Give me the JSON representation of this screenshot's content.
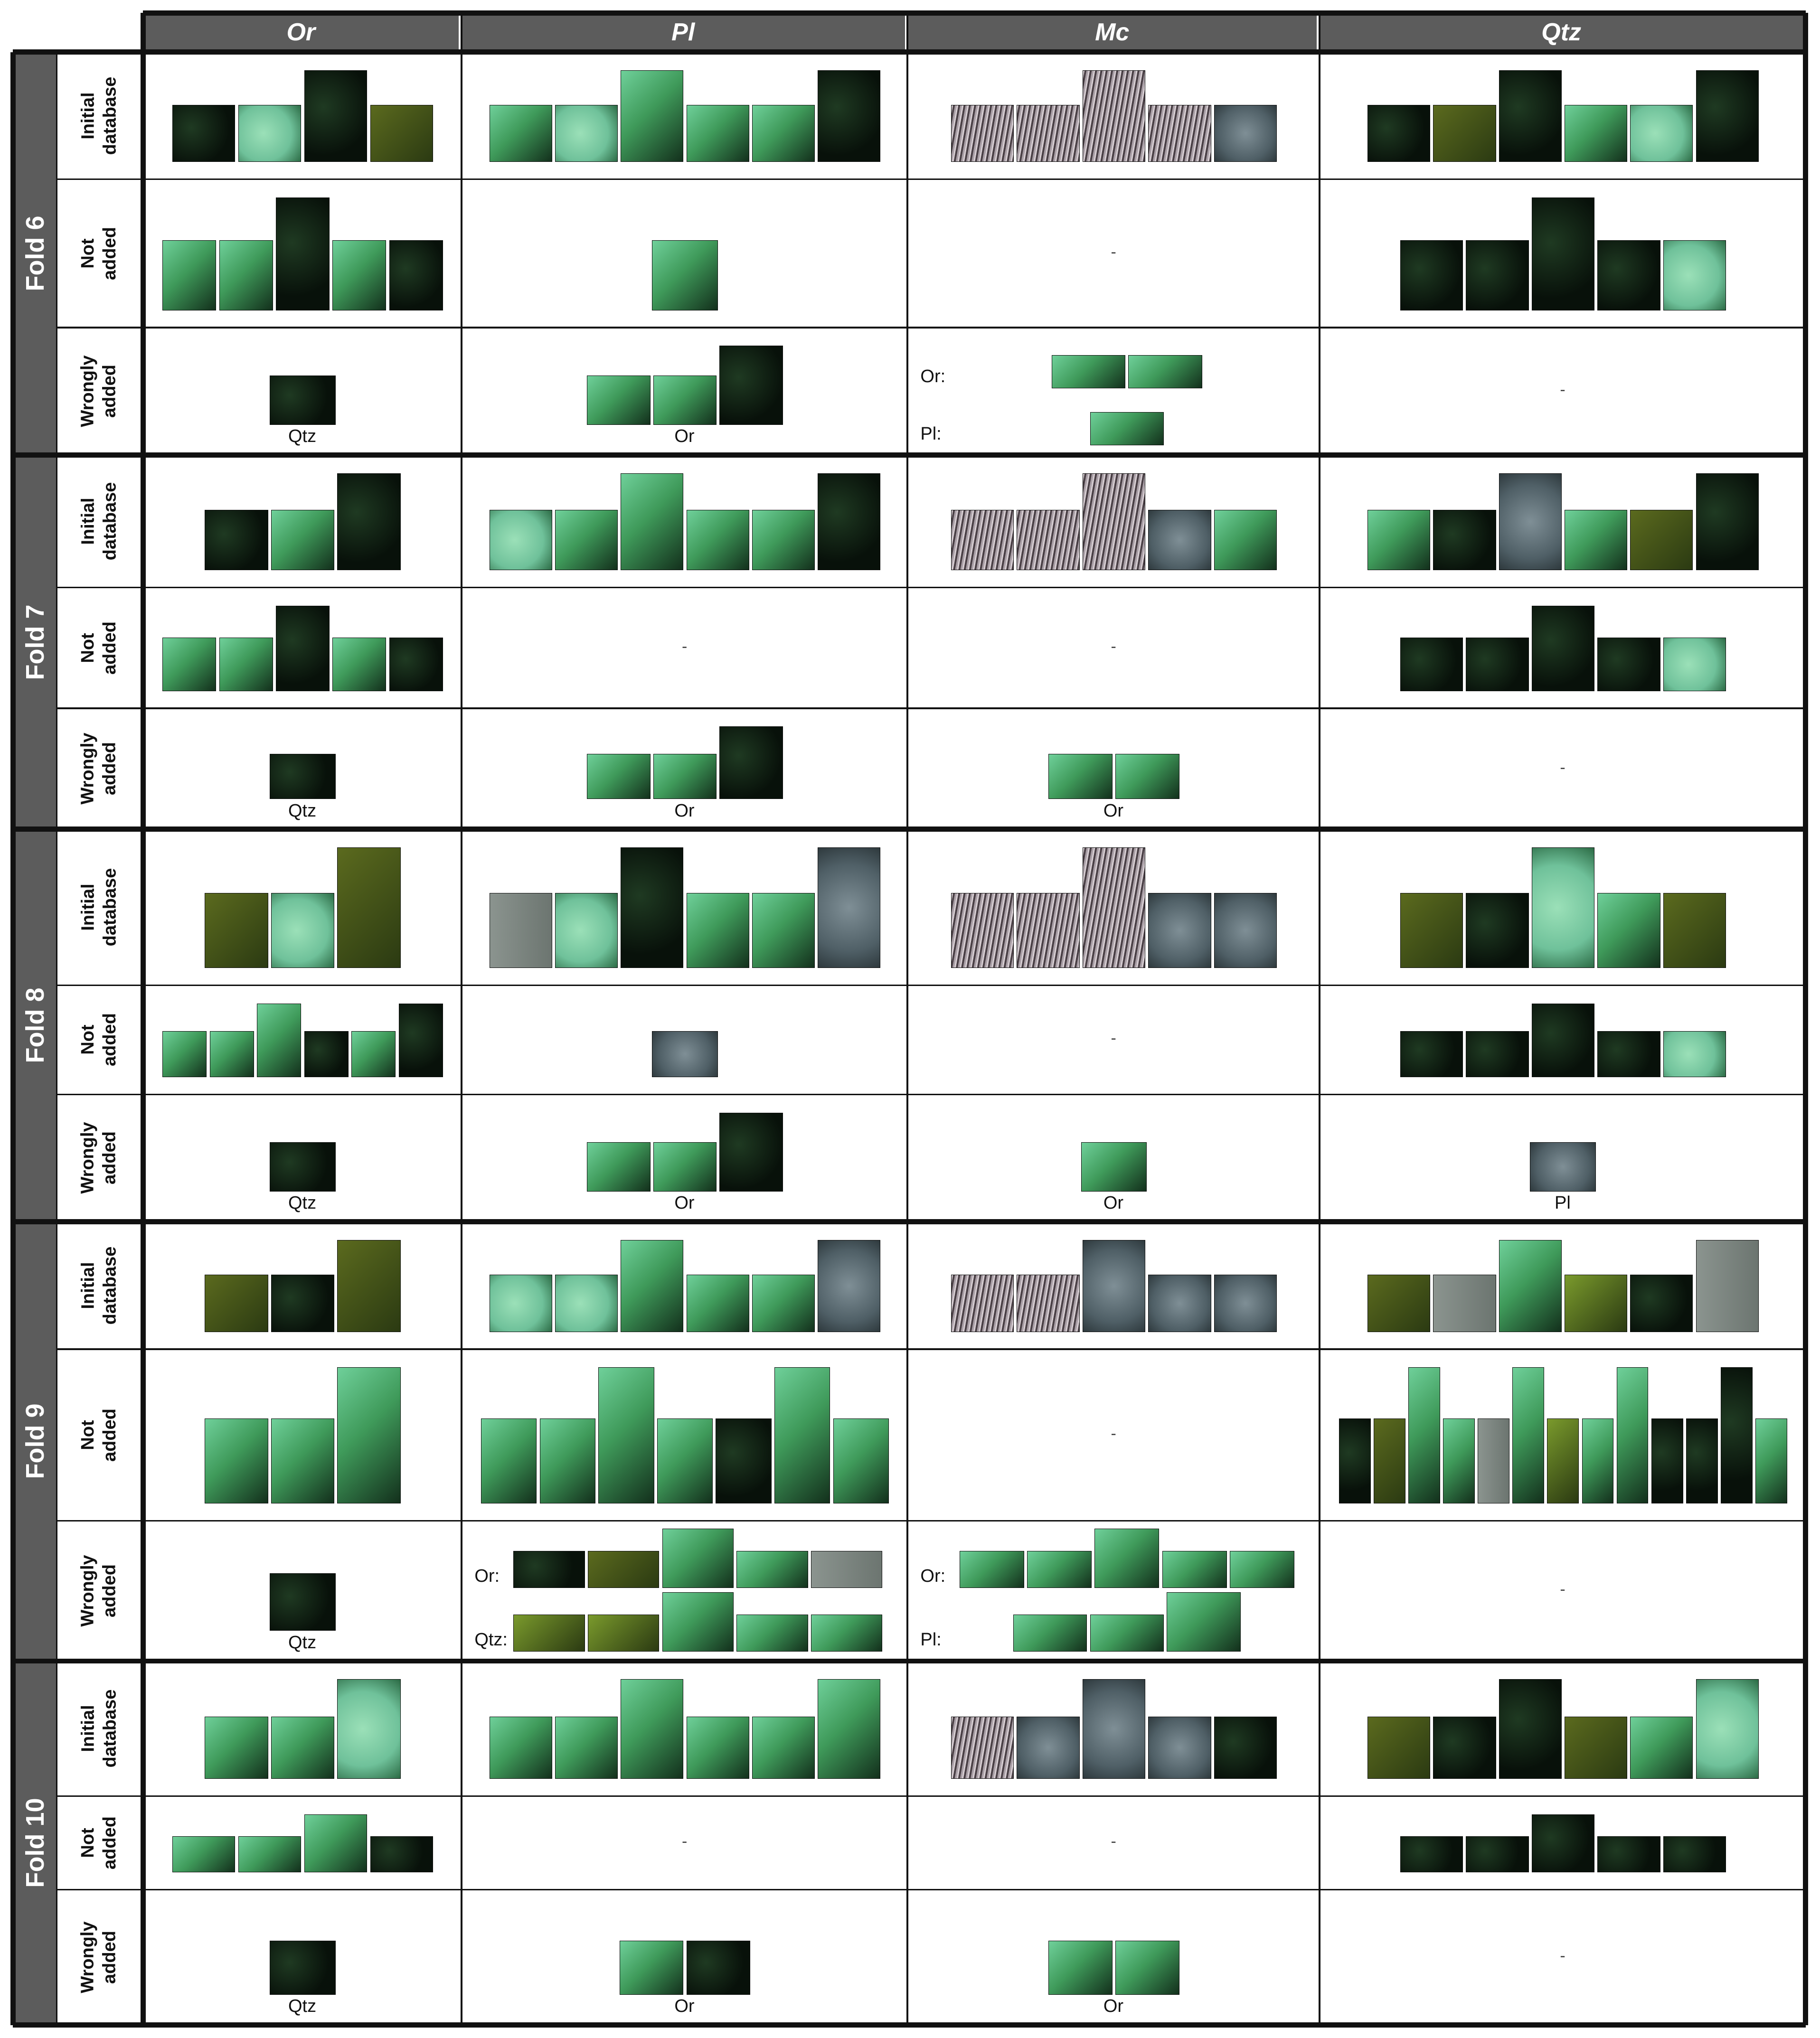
{
  "columns": [
    {
      "key": "or",
      "label": "Or"
    },
    {
      "key": "pl",
      "label": "Pl"
    },
    {
      "key": "mc",
      "label": "Mc"
    },
    {
      "key": "qtz",
      "label": "Qtz"
    }
  ],
  "row_types": [
    {
      "key": "initial",
      "label": "Initial\ndatabase"
    },
    {
      "key": "not_added",
      "label": "Not\nadded"
    },
    {
      "key": "wrongly",
      "label": "Wrongly\nadded"
    }
  ],
  "empty_marker": "-",
  "palette": {
    "green": "#3f9a5a",
    "dark": "#0f1a10",
    "pale": "#6fc19a",
    "olive": "#5b6a1e",
    "stripe": "#9a8f95",
    "blue": "#4f5f66",
    "lime": "#7a9a2c",
    "grey": "#6c7570"
  },
  "folds": [
    {
      "label": "Fold 6",
      "cells": {
        "or": {
          "initial": {
            "thumbs": [
              "dark",
              "pale",
              "dark",
              "olive"
            ]
          },
          "not_added": {
            "thumbs": [
              "green",
              "green",
              "dark",
              "green",
              "dark"
            ]
          },
          "wrongly": {
            "caption": "Qtz",
            "thumbs": [
              "dark"
            ]
          }
        },
        "pl": {
          "initial": {
            "thumbs": [
              "green",
              "pale",
              "green",
              "green",
              "green",
              "dark"
            ]
          },
          "not_added": {
            "thumbs": [
              "green"
            ]
          },
          "wrongly": {
            "caption": "Or",
            "thumbs": [
              "green",
              "green",
              "dark"
            ]
          }
        },
        "mc": {
          "initial": {
            "thumbs": [
              "stripe",
              "stripe",
              "stripe",
              "stripe",
              "blue"
            ]
          },
          "not_added": {
            "empty": true
          },
          "wrongly": {
            "groups": [
              {
                "label": "Or:",
                "thumbs": [
                  "green",
                  "green"
                ]
              },
              {
                "label": "Pl:",
                "thumbs": [
                  "green"
                ]
              }
            ]
          }
        },
        "qtz": {
          "initial": {
            "thumbs": [
              "dark",
              "olive",
              "dark",
              "green",
              "pale",
              "dark"
            ]
          },
          "not_added": {
            "thumbs": [
              "dark",
              "dark",
              "dark",
              "dark",
              "pale"
            ]
          },
          "wrongly": {
            "empty": true
          }
        }
      }
    },
    {
      "label": "Fold 7",
      "cells": {
        "or": {
          "initial": {
            "thumbs": [
              "dark",
              "green",
              "dark"
            ]
          },
          "not_added": {
            "thumbs": [
              "green",
              "green",
              "dark",
              "green",
              "dark"
            ]
          },
          "wrongly": {
            "caption": "Qtz",
            "thumbs": [
              "dark"
            ]
          }
        },
        "pl": {
          "initial": {
            "thumbs": [
              "pale",
              "green",
              "green",
              "green",
              "green",
              "dark"
            ]
          },
          "not_added": {
            "empty": true
          },
          "wrongly": {
            "caption": "Or",
            "thumbs": [
              "green",
              "green",
              "dark"
            ]
          }
        },
        "mc": {
          "initial": {
            "thumbs": [
              "stripe",
              "stripe",
              "stripe",
              "blue",
              "green"
            ]
          },
          "not_added": {
            "empty": true
          },
          "wrongly": {
            "caption": "Or",
            "thumbs": [
              "green",
              "green"
            ]
          }
        },
        "qtz": {
          "initial": {
            "thumbs": [
              "green",
              "dark",
              "blue",
              "green",
              "olive",
              "dark"
            ]
          },
          "not_added": {
            "thumbs": [
              "dark",
              "dark",
              "dark",
              "dark",
              "pale"
            ]
          },
          "wrongly": {
            "empty": true
          }
        }
      }
    },
    {
      "label": "Fold 8",
      "cells": {
        "or": {
          "initial": {
            "thumbs": [
              "olive",
              "pale",
              "olive"
            ]
          },
          "not_added": {
            "thumbs": [
              "green",
              "green",
              "green",
              "dark",
              "green",
              "dark"
            ]
          },
          "wrongly": {
            "caption": "Qtz",
            "thumbs": [
              "dark"
            ]
          }
        },
        "pl": {
          "initial": {
            "thumbs": [
              "grey",
              "pale",
              "dark",
              "green",
              "green",
              "blue"
            ]
          },
          "not_added": {
            "thumbs": [
              "blue"
            ]
          },
          "wrongly": {
            "caption": "Or",
            "thumbs": [
              "green",
              "green",
              "dark"
            ]
          }
        },
        "mc": {
          "initial": {
            "thumbs": [
              "stripe",
              "stripe",
              "stripe",
              "blue",
              "blue"
            ]
          },
          "not_added": {
            "empty": true
          },
          "wrongly": {
            "caption": "Or",
            "thumbs": [
              "green"
            ]
          }
        },
        "qtz": {
          "initial": {
            "thumbs": [
              "olive",
              "dark",
              "pale",
              "green",
              "olive"
            ]
          },
          "not_added": {
            "thumbs": [
              "dark",
              "dark",
              "dark",
              "dark",
              "pale"
            ]
          },
          "wrongly": {
            "caption": "Pl",
            "thumbs": [
              "blue"
            ]
          }
        }
      }
    },
    {
      "label": "Fold 9",
      "cells": {
        "or": {
          "initial": {
            "thumbs": [
              "olive",
              "dark",
              "olive"
            ]
          },
          "not_added": {
            "thumbs": [
              "green",
              "green",
              "green"
            ]
          },
          "wrongly": {
            "caption": "Qtz",
            "thumbs": [
              "dark"
            ]
          }
        },
        "pl": {
          "initial": {
            "thumbs": [
              "pale",
              "pale",
              "green",
              "green",
              "green",
              "blue"
            ]
          },
          "not_added": {
            "thumbs": [
              "green",
              "green",
              "green",
              "green",
              "dark",
              "green",
              "green"
            ]
          },
          "wrongly": {
            "groups": [
              {
                "label": "Or:",
                "thumbs": [
                  "dark",
                  "olive",
                  "green",
                  "green",
                  "grey"
                ]
              },
              {
                "label": "Qtz:",
                "thumbs": [
                  "lime",
                  "lime",
                  "green",
                  "green",
                  "green"
                ]
              }
            ]
          }
        },
        "mc": {
          "initial": {
            "thumbs": [
              "stripe",
              "stripe",
              "blue",
              "blue",
              "blue"
            ]
          },
          "not_added": {
            "empty": true
          },
          "wrongly": {
            "groups": [
              {
                "label": "Or:",
                "thumbs": [
                  "green",
                  "green",
                  "green",
                  "green",
                  "green"
                ]
              },
              {
                "label": "Pl:",
                "thumbs": [
                  "green",
                  "green",
                  "green"
                ]
              }
            ]
          }
        },
        "qtz": {
          "initial": {
            "thumbs": [
              "olive",
              "grey",
              "green",
              "lime",
              "dark",
              "grey"
            ]
          },
          "not_added": {
            "thumbs": [
              "dark",
              "olive",
              "green",
              "green",
              "grey",
              "green",
              "lime",
              "green",
              "green",
              "dark",
              "dark",
              "dark",
              "green"
            ]
          },
          "wrongly": {
            "empty": true
          }
        }
      }
    },
    {
      "label": "Fold 10",
      "cells": {
        "or": {
          "initial": {
            "thumbs": [
              "green",
              "green",
              "pale"
            ]
          },
          "not_added": {
            "thumbs": [
              "green",
              "green",
              "green",
              "dark"
            ]
          },
          "wrongly": {
            "caption": "Qtz",
            "thumbs": [
              "dark"
            ]
          }
        },
        "pl": {
          "initial": {
            "thumbs": [
              "green",
              "green",
              "green",
              "green",
              "green",
              "green"
            ]
          },
          "not_added": {
            "empty": true
          },
          "wrongly": {
            "caption": "Or",
            "thumbs": [
              "green",
              "dark"
            ]
          }
        },
        "mc": {
          "initial": {
            "thumbs": [
              "stripe",
              "blue",
              "blue",
              "blue",
              "dark"
            ]
          },
          "not_added": {
            "empty": true
          },
          "wrongly": {
            "caption": "Or",
            "thumbs": [
              "green",
              "green"
            ]
          }
        },
        "qtz": {
          "initial": {
            "thumbs": [
              "olive",
              "dark",
              "dark",
              "olive",
              "green",
              "pale"
            ]
          },
          "not_added": {
            "thumbs": [
              "dark",
              "dark",
              "dark",
              "dark",
              "dark"
            ]
          },
          "wrongly": {
            "empty": true
          }
        }
      }
    }
  ]
}
